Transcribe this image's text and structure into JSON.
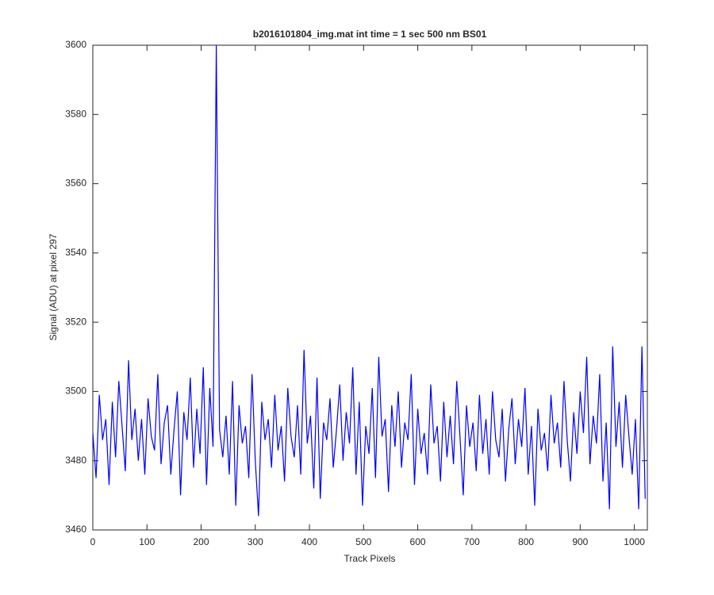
{
  "chart_data": {
    "type": "line",
    "title": "b2016101804_img.mat int time = 1 sec  500 nm BS01",
    "x_label": "Track Pixels",
    "y_label": "Signal (ADU) at pixel 297",
    "xlim": [
      0,
      1024
    ],
    "xticks": [
      0,
      100,
      200,
      300,
      400,
      500,
      600,
      700,
      800,
      900,
      1000
    ],
    "ylim": [
      3460,
      3600
    ],
    "yticks": [
      3460,
      3480,
      3500,
      3520,
      3540,
      3560,
      3580,
      3600
    ],
    "grid": false,
    "x": [
      0,
      6,
      12,
      18,
      24,
      30,
      36,
      42,
      48,
      54,
      60,
      66,
      72,
      78,
      84,
      90,
      96,
      102,
      108,
      114,
      120,
      126,
      132,
      138,
      144,
      150,
      156,
      162,
      168,
      174,
      180,
      186,
      192,
      198,
      204,
      210,
      216,
      222,
      228,
      234,
      240,
      246,
      252,
      258,
      264,
      270,
      276,
      282,
      288,
      294,
      300,
      306,
      312,
      318,
      324,
      330,
      336,
      342,
      348,
      354,
      360,
      366,
      372,
      378,
      384,
      390,
      396,
      402,
      408,
      414,
      420,
      426,
      432,
      438,
      444,
      450,
      456,
      462,
      468,
      474,
      480,
      486,
      492,
      498,
      504,
      510,
      516,
      522,
      528,
      534,
      540,
      546,
      552,
      558,
      564,
      570,
      576,
      582,
      588,
      594,
      600,
      606,
      612,
      618,
      624,
      630,
      636,
      642,
      648,
      654,
      660,
      666,
      672,
      678,
      684,
      690,
      696,
      702,
      708,
      714,
      720,
      726,
      732,
      738,
      744,
      750,
      756,
      762,
      768,
      774,
      780,
      786,
      792,
      798,
      804,
      810,
      816,
      822,
      828,
      834,
      840,
      846,
      852,
      858,
      864,
      870,
      876,
      882,
      888,
      894,
      900,
      906,
      912,
      918,
      924,
      930,
      936,
      942,
      948,
      954,
      960,
      966,
      972,
      978,
      984,
      990,
      996,
      1002,
      1008,
      1014,
      1020
    ],
    "series": [
      {
        "color": "#0000ff",
        "values": [
          3488,
          3475,
          3499,
          3486,
          3492,
          3473,
          3497,
          3481,
          3503,
          3490,
          3477,
          3509,
          3486,
          3495,
          3480,
          3492,
          3476,
          3498,
          3487,
          3483,
          3505,
          3479,
          3491,
          3496,
          3476,
          3489,
          3500,
          3470,
          3494,
          3486,
          3504,
          3478,
          3495,
          3482,
          3507,
          3473,
          3501,
          3484,
          3600,
          3489,
          3481,
          3493,
          3476,
          3503,
          3467,
          3496,
          3485,
          3490,
          3475,
          3505,
          3480,
          3464,
          3497,
          3486,
          3492,
          3478,
          3499,
          3483,
          3490,
          3474,
          3501,
          3487,
          3481,
          3496,
          3476,
          3512,
          3485,
          3493,
          3472,
          3504,
          3469,
          3491,
          3486,
          3498,
          3478,
          3489,
          3502,
          3480,
          3494,
          3485,
          3507,
          3476,
          3497,
          3467,
          3490,
          3482,
          3501,
          3475,
          3510,
          3487,
          3492,
          3471,
          3496,
          3484,
          3500,
          3478,
          3491,
          3486,
          3505,
          3473,
          3495,
          3482,
          3488,
          3476,
          3502,
          3485,
          3490,
          3474,
          3497,
          3481,
          3493,
          3479,
          3503,
          3487,
          3470,
          3496,
          3484,
          3491,
          3477,
          3499,
          3482,
          3492,
          3476,
          3500,
          3486,
          3481,
          3495,
          3474,
          3489,
          3498,
          3479,
          3492,
          3484,
          3501,
          3476,
          3490,
          3467,
          3495,
          3483,
          3488,
          3477,
          3499,
          3485,
          3491,
          3478,
          3503,
          3486,
          3474,
          3494,
          3482,
          3500,
          3488,
          3510,
          3479,
          3493,
          3485,
          3505,
          3474,
          3491,
          3466,
          3513,
          3484,
          3497,
          3478,
          3499,
          3487,
          3476,
          3492,
          3466,
          3513,
          3469
        ]
      }
    ]
  }
}
